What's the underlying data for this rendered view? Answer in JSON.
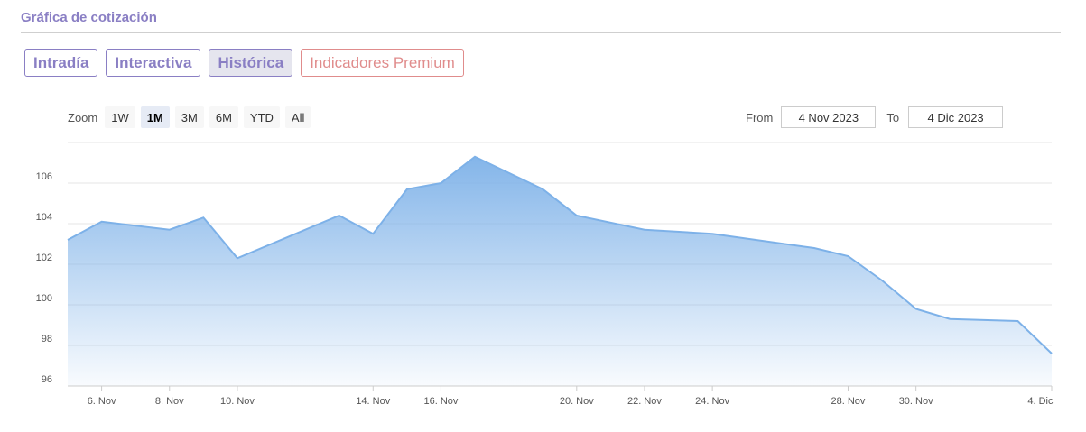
{
  "header": {
    "title": "Gráfica de cotización"
  },
  "tabs": [
    {
      "label": "Intradía",
      "state": "normal"
    },
    {
      "label": "Interactiva",
      "state": "normal"
    },
    {
      "label": "Histórica",
      "state": "active"
    },
    {
      "label": "Indicadores Premium",
      "state": "premium"
    }
  ],
  "zoom": {
    "label": "Zoom",
    "buttons": [
      "1W",
      "1M",
      "3M",
      "6M",
      "YTD",
      "All"
    ],
    "selected": "1M"
  },
  "range": {
    "from_label": "From",
    "from_value": "4 Nov 2023",
    "to_label": "To",
    "to_value": "4 Dic 2023"
  },
  "colors": {
    "accent": "#8a7fc4",
    "premium": "#e08c8c",
    "series": "#7db1e8"
  },
  "chart_data": {
    "type": "area",
    "title": "",
    "xlabel": "",
    "ylabel": "",
    "ylim": [
      96,
      108
    ],
    "yticks": [
      96,
      98,
      100,
      102,
      104,
      106
    ],
    "xlim": [
      "2023-11-05",
      "2023-12-04"
    ],
    "xticks": [
      {
        "date": "2023-11-06",
        "label": "6. Nov"
      },
      {
        "date": "2023-11-08",
        "label": "8. Nov"
      },
      {
        "date": "2023-11-10",
        "label": "10. Nov"
      },
      {
        "date": "2023-11-14",
        "label": "14. Nov"
      },
      {
        "date": "2023-11-16",
        "label": "16. Nov"
      },
      {
        "date": "2023-11-20",
        "label": "20. Nov"
      },
      {
        "date": "2023-11-22",
        "label": "22. Nov"
      },
      {
        "date": "2023-11-24",
        "label": "24. Nov"
      },
      {
        "date": "2023-11-28",
        "label": "28. Nov"
      },
      {
        "date": "2023-11-30",
        "label": "30. Nov"
      },
      {
        "date": "2023-12-04",
        "label": "4. Dic"
      }
    ],
    "grid": true,
    "series": [
      {
        "points": [
          [
            "2023-11-05",
            103.2
          ],
          [
            "2023-11-06",
            104.1
          ],
          [
            "2023-11-08",
            103.7
          ],
          [
            "2023-11-09",
            104.3
          ],
          [
            "2023-11-10",
            102.3
          ],
          [
            "2023-11-13",
            104.4
          ],
          [
            "2023-11-14",
            103.5
          ],
          [
            "2023-11-15",
            105.7
          ],
          [
            "2023-11-16",
            106.0
          ],
          [
            "2023-11-17",
            107.3
          ],
          [
            "2023-11-19",
            105.7
          ],
          [
            "2023-11-20",
            104.4
          ],
          [
            "2023-11-22",
            103.7
          ],
          [
            "2023-11-24",
            103.5
          ],
          [
            "2023-11-27",
            102.8
          ],
          [
            "2023-11-28",
            102.4
          ],
          [
            "2023-11-29",
            101.2
          ],
          [
            "2023-11-30",
            99.8
          ],
          [
            "2023-12-01",
            99.3
          ],
          [
            "2023-12-03",
            99.2
          ],
          [
            "2023-12-04",
            97.6
          ]
        ]
      }
    ]
  }
}
